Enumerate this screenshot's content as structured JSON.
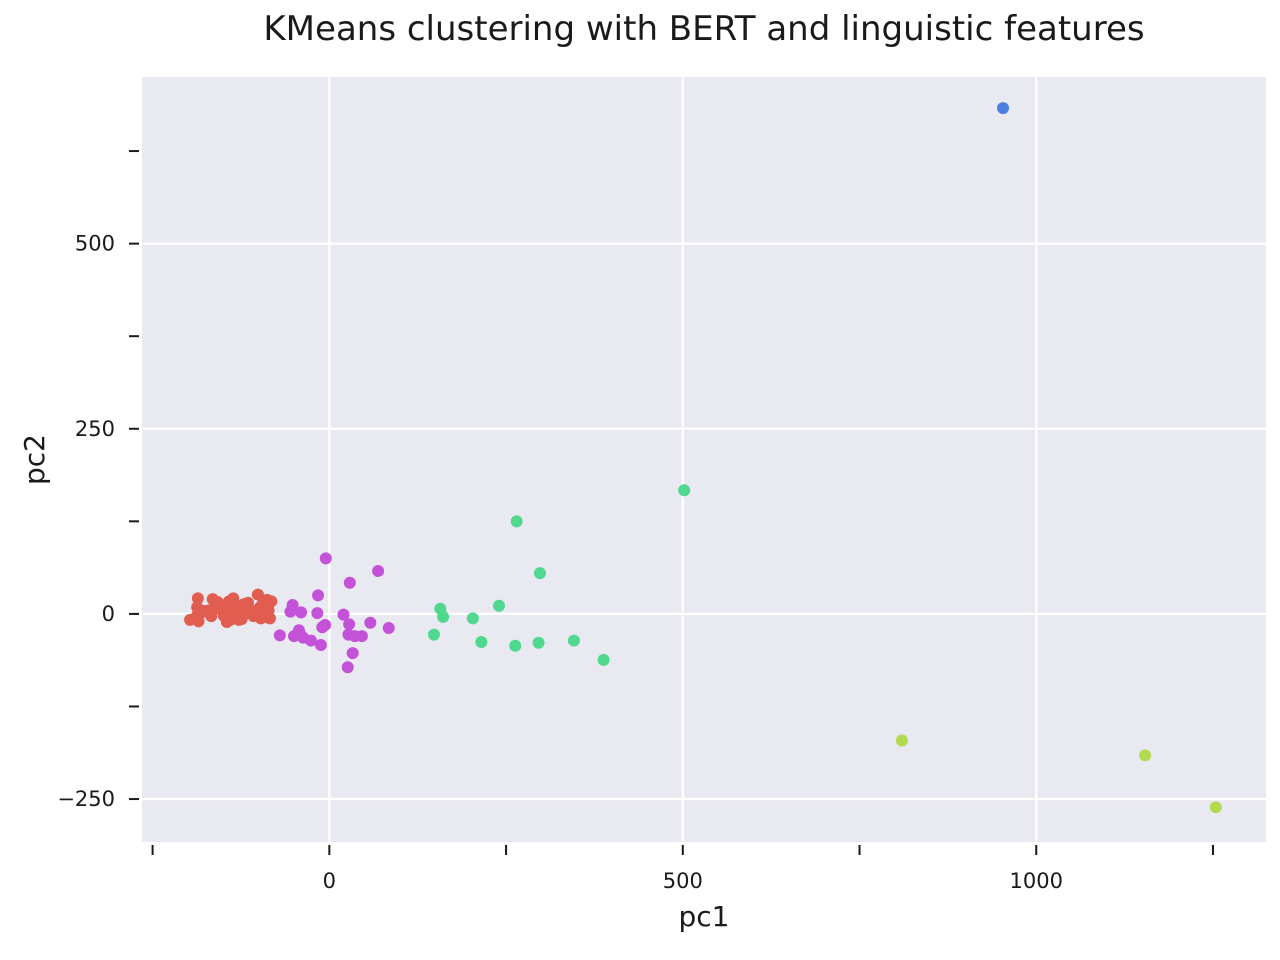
{
  "chart_data": {
    "type": "scatter",
    "title": "KMeans clustering with BERT and linguistic features",
    "xlabel": "pc1",
    "ylabel": "pc2",
    "xlim": [
      -265,
      1325
    ],
    "ylim": [
      -308,
      725
    ],
    "x_major_ticks": [
      0,
      500,
      1000
    ],
    "x_minor_ticks": [
      -250,
      250,
      750,
      1250
    ],
    "y_major_ticks": [
      -250,
      0,
      250,
      500
    ],
    "y_minor_ticks": [
      -125,
      125,
      375,
      625
    ],
    "grid": true,
    "legend": "none",
    "colors": {
      "panel": "#e9e9f1",
      "grid": "#ffffff",
      "cluster_red": "#e05d4f",
      "cluster_purple": "#c452d8",
      "cluster_green": "#4fd88e",
      "cluster_lime": "#b2d94f",
      "cluster_blue": "#4e7fe0"
    },
    "series": [
      {
        "color": "#e05d4f",
        "points": [
          [
            -197,
            -8
          ],
          [
            -187,
            9
          ],
          [
            -187,
            -2
          ],
          [
            -185,
            -10
          ],
          [
            -181,
            2
          ],
          [
            -177,
            4
          ],
          [
            -170,
            5
          ],
          [
            -167,
            -3
          ],
          [
            -162,
            9
          ],
          [
            -158,
            16
          ],
          [
            -154,
            6
          ],
          [
            -149,
            -3
          ],
          [
            -147,
            4
          ],
          [
            -145,
            -11
          ],
          [
            -142,
            17
          ],
          [
            -139,
            -1
          ],
          [
            -136,
            21
          ],
          [
            -134,
            5
          ],
          [
            -131,
            11
          ],
          [
            -127,
            -2
          ],
          [
            -124,
            -7
          ],
          [
            -121,
            13
          ],
          [
            -118,
            4
          ],
          [
            -113,
            1
          ],
          [
            -109,
            4
          ],
          [
            -104,
            2
          ],
          [
            -101,
            26
          ],
          [
            -98,
            9
          ],
          [
            -94,
            14
          ],
          [
            -91,
            -4
          ],
          [
            -88,
            19
          ],
          [
            -86,
            5
          ],
          [
            -84,
            -6
          ],
          [
            -82,
            17
          ],
          [
            -186,
            21
          ],
          [
            -165,
            20
          ],
          [
            -150,
            11
          ],
          [
            -140,
            -8
          ],
          [
            -128,
            -8
          ],
          [
            -115,
            15
          ],
          [
            -107,
            -3
          ],
          [
            -97,
            -6
          ]
        ]
      },
      {
        "color": "#c452d8",
        "points": [
          [
            -70,
            -29
          ],
          [
            -55,
            3
          ],
          [
            -52,
            12
          ],
          [
            -50,
            -30
          ],
          [
            -43,
            -22
          ],
          [
            -42,
            -26
          ],
          [
            -40,
            2
          ],
          [
            -37,
            -32
          ],
          [
            -26,
            -36
          ],
          [
            -17,
            1
          ],
          [
            -16,
            25
          ],
          [
            -12,
            -42
          ],
          [
            -10,
            -18
          ],
          [
            -6,
            -15
          ],
          [
            -5,
            75
          ],
          [
            20,
            -1
          ],
          [
            26,
            -72
          ],
          [
            27,
            -28
          ],
          [
            28,
            -14
          ],
          [
            29,
            42
          ],
          [
            33,
            -53
          ],
          [
            36,
            -30
          ],
          [
            46,
            -30
          ],
          [
            58,
            -12
          ],
          [
            69,
            58
          ],
          [
            84,
            -19
          ]
        ]
      },
      {
        "color": "#4fd88e",
        "points": [
          [
            148,
            -28
          ],
          [
            157,
            7
          ],
          [
            161,
            -4
          ],
          [
            203,
            -6
          ],
          [
            240,
            11
          ],
          [
            215,
            -38
          ],
          [
            263,
            -43
          ],
          [
            265,
            125
          ],
          [
            296,
            -39
          ],
          [
            298,
            55
          ],
          [
            346,
            -36
          ],
          [
            388,
            -62
          ],
          [
            502,
            167
          ]
        ]
      },
      {
        "color": "#b2d94f",
        "points": [
          [
            810,
            -171
          ],
          [
            1154,
            -191
          ],
          [
            1254,
            -261
          ]
        ]
      },
      {
        "color": "#4e7fe0",
        "points": [
          [
            953,
            683
          ]
        ]
      }
    ]
  }
}
